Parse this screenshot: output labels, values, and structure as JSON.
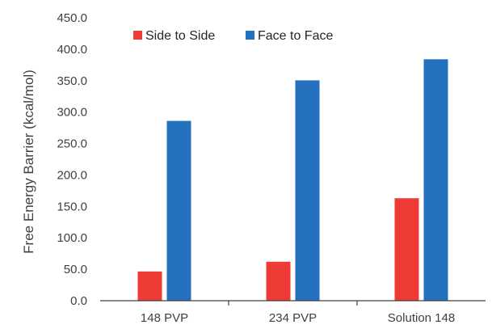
{
  "chart_data": {
    "type": "bar",
    "title": "",
    "xlabel": "",
    "ylabel": "Free Energy Barrier (kcal/mol)",
    "categories": [
      "148 PVP",
      "234 PVP",
      "Solution 148"
    ],
    "series": [
      {
        "name": "Side to Side",
        "color": "#ef3b36",
        "values": [
          46.5,
          62.0,
          163.0
        ]
      },
      {
        "name": "Face to Face",
        "color": "#2670c0",
        "values": [
          286.0,
          350.5,
          384.0
        ]
      }
    ],
    "ylim": [
      0,
      450
    ],
    "yticks": [
      "0.0",
      "50.0",
      "100.0",
      "150.0",
      "200.0",
      "250.0",
      "300.0",
      "350.0",
      "400.0",
      "450.0"
    ],
    "grid": false,
    "legend": "top-left"
  }
}
